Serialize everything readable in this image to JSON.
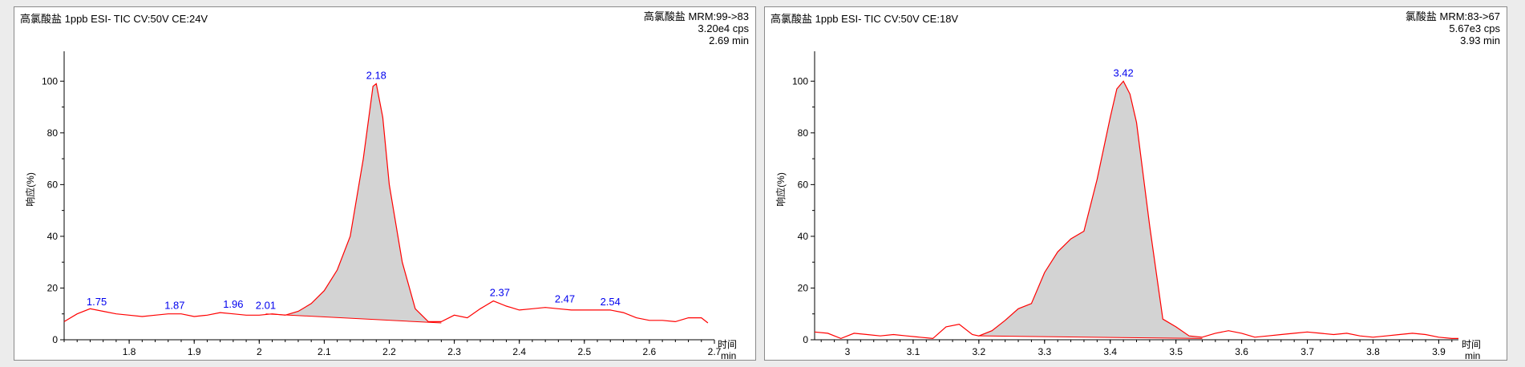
{
  "chart_data": [
    {
      "type": "line",
      "title": "高氯酸盐 1ppb ESI- TIC CV:50V CE:24V",
      "info": [
        "高氯酸盐 MRM:99->83",
        "3.20e4 cps",
        "2.69 min"
      ],
      "xlabel": "时间",
      "xunit": "min",
      "ylabel": "响应(%)",
      "xlim": [
        1.7,
        2.7
      ],
      "ylim": [
        0,
        110
      ],
      "xticks": [
        1.8,
        1.9,
        2.0,
        2.1,
        2.2,
        2.3,
        2.4,
        2.5,
        2.6,
        2.7
      ],
      "xtick_labels": [
        "1.8",
        "1.9",
        "2",
        "2.1",
        "2.2",
        "2.3",
        "2.4",
        "2.5",
        "2.6",
        "2.7"
      ],
      "yticks": [
        0,
        20,
        40,
        60,
        80,
        100
      ],
      "ytick_labels": [
        "0",
        "20",
        "40",
        "60",
        "80",
        "100"
      ],
      "series": [
        {
          "name": "MRM 99->83",
          "x": [
            1.7,
            1.72,
            1.74,
            1.76,
            1.78,
            1.8,
            1.82,
            1.84,
            1.86,
            1.88,
            1.9,
            1.92,
            1.94,
            1.96,
            1.98,
            2.0,
            2.02,
            2.04,
            2.06,
            2.08,
            2.1,
            2.12,
            2.14,
            2.16,
            2.175,
            2.18,
            2.19,
            2.2,
            2.22,
            2.24,
            2.26,
            2.28,
            2.3,
            2.32,
            2.34,
            2.36,
            2.38,
            2.4,
            2.42,
            2.44,
            2.46,
            2.48,
            2.5,
            2.52,
            2.54,
            2.56,
            2.58,
            2.6,
            2.62,
            2.64,
            2.66,
            2.68,
            2.69
          ],
          "values": [
            7,
            10,
            12,
            11,
            10,
            9.5,
            9,
            9.5,
            10,
            10,
            9,
            9.5,
            10.5,
            10,
            9.5,
            9.5,
            10,
            9.5,
            11,
            14,
            19,
            27,
            40,
            70,
            98,
            99,
            86,
            60,
            30,
            12,
            7,
            7,
            9.5,
            8.5,
            12,
            15,
            13,
            11.5,
            12,
            12.5,
            12,
            11.5,
            11.5,
            11.5,
            11.5,
            10.5,
            8.5,
            7.5,
            7.5,
            7,
            8.5,
            8.5,
            6.5
          ]
        }
      ],
      "integrated_area": {
        "start": 2.01,
        "end": 2.28,
        "baseline": [
          10,
          6.5
        ]
      },
      "peak_labels": [
        {
          "x": 1.75,
          "y": 11.5,
          "text": "1.75"
        },
        {
          "x": 1.87,
          "y": 10,
          "text": "1.87"
        },
        {
          "x": 1.96,
          "y": 10.5,
          "text": "1.96"
        },
        {
          "x": 2.01,
          "y": 10,
          "text": "2.01"
        },
        {
          "x": 2.18,
          "y": 99,
          "text": "2.18"
        },
        {
          "x": 2.37,
          "y": 15,
          "text": "2.37"
        },
        {
          "x": 2.47,
          "y": 12.5,
          "text": "2.47"
        },
        {
          "x": 2.54,
          "y": 11.5,
          "text": "2.54"
        }
      ],
      "colors": {
        "trace": "#ff0000",
        "area": "#d3d3d3",
        "label": "#0000ee"
      }
    },
    {
      "type": "line",
      "title": "高氯酸盐 1ppb ESI- TIC CV:50V CE:18V",
      "info": [
        "氯酸盐 MRM:83->67",
        "5.67e3 cps",
        "3.93 min"
      ],
      "xlabel": "时间",
      "xunit": "min",
      "ylabel": "响应(%)",
      "xlim": [
        2.95,
        3.93
      ],
      "ylim": [
        0,
        110
      ],
      "xticks": [
        3.0,
        3.1,
        3.2,
        3.3,
        3.4,
        3.5,
        3.6,
        3.7,
        3.8,
        3.9
      ],
      "xtick_labels": [
        "3",
        "3.1",
        "3.2",
        "3.3",
        "3.4",
        "3.5",
        "3.6",
        "3.7",
        "3.8",
        "3.9"
      ],
      "yticks": [
        0,
        20,
        40,
        60,
        80,
        100
      ],
      "ytick_labels": [
        "0",
        "20",
        "40",
        "60",
        "80",
        "100"
      ],
      "series": [
        {
          "name": "MRM 83->67",
          "x": [
            2.95,
            2.97,
            2.99,
            3.01,
            3.03,
            3.05,
            3.07,
            3.09,
            3.11,
            3.13,
            3.15,
            3.17,
            3.19,
            3.2,
            3.22,
            3.24,
            3.26,
            3.28,
            3.3,
            3.32,
            3.34,
            3.36,
            3.38,
            3.4,
            3.41,
            3.42,
            3.43,
            3.44,
            3.46,
            3.48,
            3.5,
            3.52,
            3.54,
            3.56,
            3.58,
            3.6,
            3.62,
            3.64,
            3.66,
            3.68,
            3.7,
            3.72,
            3.74,
            3.76,
            3.78,
            3.8,
            3.82,
            3.84,
            3.86,
            3.88,
            3.9,
            3.92,
            3.93
          ],
          "values": [
            3,
            2.5,
            0.5,
            2.5,
            2,
            1.5,
            2,
            1.5,
            1,
            0.5,
            5,
            6,
            2,
            1.5,
            3.5,
            7.5,
            12,
            14,
            26,
            34,
            39,
            42,
            62,
            86,
            97,
            100,
            95,
            84,
            44,
            8,
            5,
            1.5,
            1,
            2.5,
            3.5,
            2.5,
            1,
            1.5,
            2,
            2.5,
            3,
            2.5,
            2,
            2.5,
            1.5,
            1,
            1.5,
            2,
            2.5,
            2,
            1,
            0.5,
            0.5
          ]
        }
      ],
      "integrated_area": {
        "start": 3.2,
        "end": 3.54,
        "baseline": [
          1.5,
          0.5
        ]
      },
      "peak_labels": [
        {
          "x": 3.42,
          "y": 100,
          "text": "3.42"
        }
      ],
      "colors": {
        "trace": "#ff0000",
        "area": "#d3d3d3",
        "label": "#0000ee"
      }
    }
  ]
}
